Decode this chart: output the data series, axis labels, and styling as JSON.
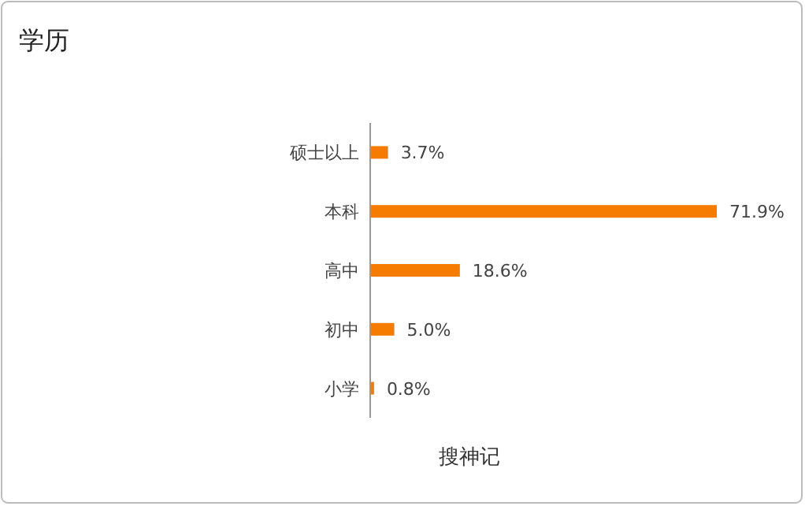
{
  "chart_data": {
    "type": "bar",
    "orientation": "horizontal",
    "title": "学历",
    "xlabel": "搜神记",
    "categories": [
      "硕士以上",
      "本科",
      "高中",
      "初中",
      "小学"
    ],
    "values": [
      3.7,
      71.9,
      18.6,
      5.0,
      0.8
    ],
    "value_labels": [
      "3.7%",
      "71.9%",
      "18.6%",
      "5.0%",
      "0.8%"
    ],
    "color": "#f57c00"
  }
}
